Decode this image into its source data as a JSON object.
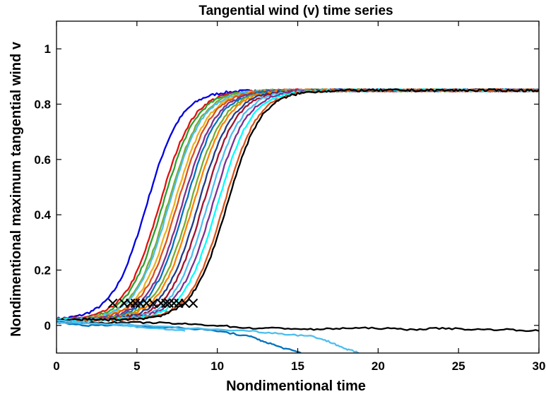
{
  "chart_data": {
    "type": "line",
    "title": "Tangential wind (v) time series",
    "xlabel": "Nondimentional time",
    "ylabel": "Nondimentional maximum tangential wind v",
    "xlim": [
      0,
      30
    ],
    "ylim": [
      -0.1,
      1.1
    ],
    "xticks": [
      0,
      5,
      10,
      15,
      20,
      25,
      30
    ],
    "xtick_labels": [
      "0",
      "5",
      "10",
      "15",
      "20",
      "25",
      "30"
    ],
    "yticks": [
      0,
      0.2,
      0.4,
      0.6,
      0.8,
      1
    ],
    "ytick_labels": [
      "0",
      "0.2",
      "0.4",
      "0.6",
      "0.8",
      "1"
    ],
    "grid": false,
    "legend": "none",
    "plateau_value": 0.85,
    "intensifying_series": [
      {
        "color": "#0000e0",
        "t50": 5.6
      },
      {
        "color": "#e01010",
        "t50": 6.4
      },
      {
        "color": "#2ca02c",
        "t50": 6.6
      },
      {
        "color": "#77ac30",
        "t50": 6.9
      },
      {
        "color": "#4dbeee",
        "t50": 7.0
      },
      {
        "color": "#edb120",
        "t50": 7.3
      },
      {
        "color": "#d95319",
        "t50": 7.5
      },
      {
        "color": "#7e2f8e",
        "t50": 7.8
      },
      {
        "color": "#0072bd",
        "t50": 8.0
      },
      {
        "color": "#77ac30",
        "t50": 8.3
      },
      {
        "color": "#ff8000",
        "t50": 8.5
      },
      {
        "color": "#1f3c88",
        "t50": 8.8
      },
      {
        "color": "#a2142f",
        "t50": 9.1
      },
      {
        "color": "#4dbeee",
        "t50": 9.4
      },
      {
        "color": "#7e2f8e",
        "t50": 9.7
      },
      {
        "color": "#00ffff",
        "t50": 10.0
      },
      {
        "color": "#d95319",
        "t50": 10.4
      },
      {
        "color": "#000000",
        "t50": 10.6
      }
    ],
    "decaying_series": [
      {
        "color": "#000000",
        "x": [
          0,
          2,
          4,
          6,
          8,
          10,
          12,
          14,
          16,
          18,
          20,
          22,
          24,
          26,
          28,
          30
        ],
        "y": [
          0.01,
          0.01,
          0.01,
          0.01,
          0.005,
          0.0,
          -0.01,
          -0.01,
          -0.015,
          -0.01,
          -0.01,
          -0.015,
          -0.01,
          -0.015,
          -0.015,
          -0.02
        ]
      },
      {
        "color": "#0072bd",
        "x": [
          0,
          2,
          4,
          6,
          8,
          10,
          12,
          13,
          14,
          15.2
        ],
        "y": [
          0.01,
          0.0,
          0.0,
          -0.005,
          -0.01,
          -0.02,
          -0.04,
          -0.06,
          -0.08,
          -0.1
        ]
      },
      {
        "color": "#4dbeee",
        "x": [
          0,
          4,
          8,
          12,
          14,
          16,
          17,
          18,
          18.8
        ],
        "y": [
          0.01,
          0.005,
          -0.01,
          -0.02,
          -0.03,
          -0.04,
          -0.06,
          -0.085,
          -0.1
        ]
      },
      {
        "color": "#4dbeee",
        "x": [
          0,
          2,
          4,
          6,
          8
        ],
        "y": [
          0.02,
          0.01,
          0.0,
          -0.01,
          -0.02
        ]
      }
    ],
    "markers": {
      "symbol": "x",
      "color": "#000000",
      "y": 0.08,
      "x": [
        3.5,
        4.2,
        4.6,
        4.9,
        5.2,
        5.6,
        6.0,
        6.5,
        6.8,
        7.0,
        7.3,
        7.6,
        8.0,
        8.5
      ]
    }
  }
}
